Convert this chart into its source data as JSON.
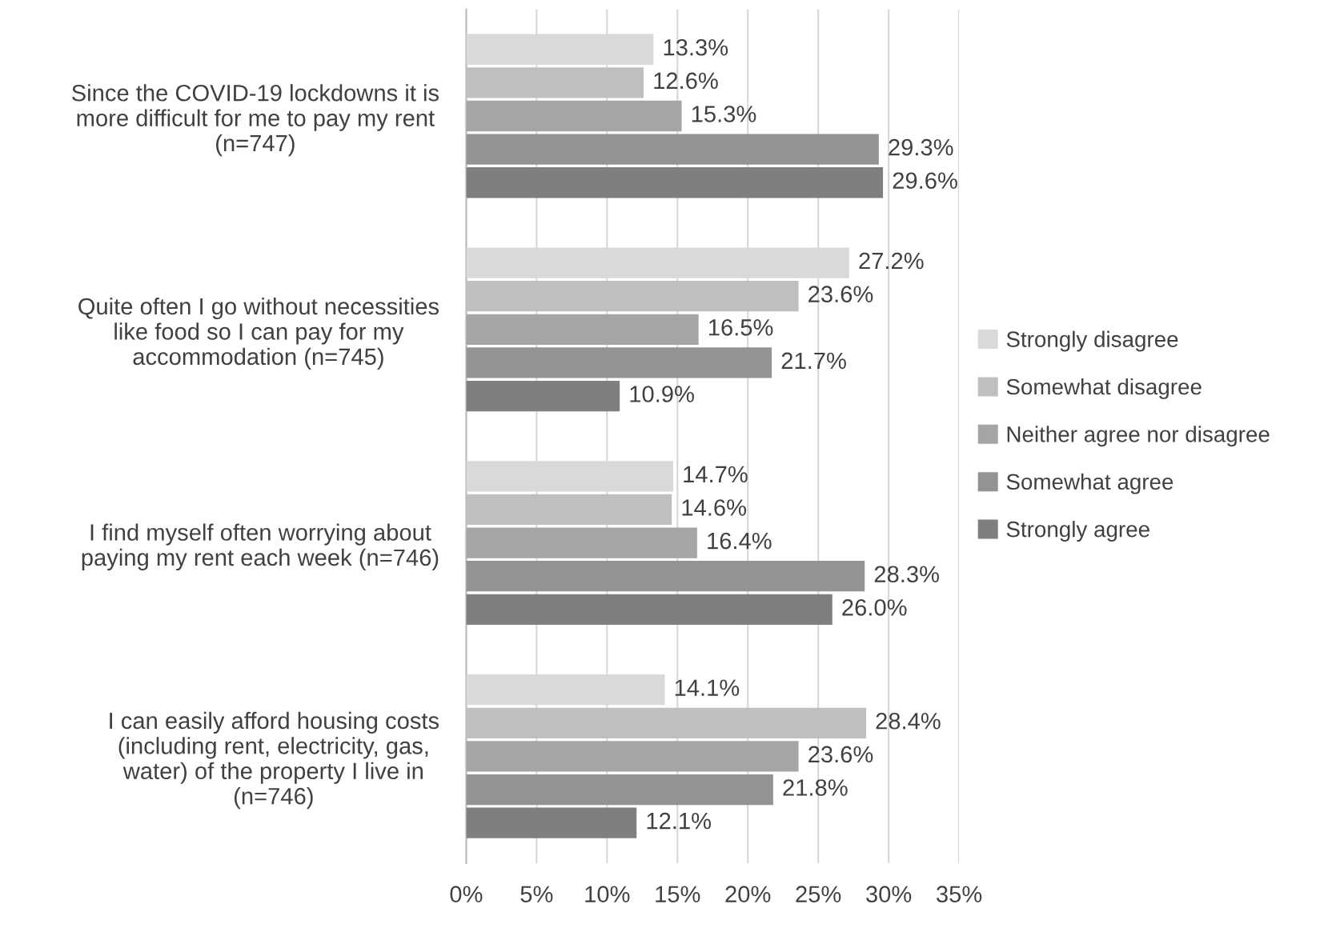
{
  "chart_data": {
    "type": "bar",
    "orientation": "horizontal",
    "categories": [
      "Since the COVID-19 lockdowns it is more difficult for me to pay my rent (n=747)",
      "Quite often I go without necessities like food so I can pay for my accommodation (n=745)",
      "I find myself often worrying about paying my rent each week (n=746)",
      "I can easily afford housing costs (including rent, electricity, gas, water) of the property I live in (n=746)"
    ],
    "series": [
      {
        "name": "Strongly disagree",
        "color": "#d9d9d9",
        "values": [
          13.3,
          27.2,
          14.7,
          14.1
        ],
        "value_labels": [
          "13.3%",
          "27.2%",
          "14.7%",
          "14.1%"
        ]
      },
      {
        "name": "Somewhat disagree",
        "color": "#bfbfbf",
        "values": [
          12.6,
          23.6,
          14.6,
          28.4
        ],
        "value_labels": [
          "12.6%",
          "23.6%",
          "14.6%",
          "28.4%"
        ]
      },
      {
        "name": "Neither agree nor disagree",
        "color": "#a5a5a5",
        "values": [
          15.3,
          16.5,
          16.4,
          23.6
        ],
        "value_labels": [
          "15.3%",
          "16.5%",
          "16.4%",
          "23.6%"
        ]
      },
      {
        "name": "Somewhat agree",
        "color": "#939393",
        "values": [
          29.3,
          21.7,
          28.3,
          21.8
        ],
        "value_labels": [
          "29.3%",
          "21.7%",
          "28.3%",
          "21.8%"
        ]
      },
      {
        "name": "Strongly agree",
        "color": "#7f7f7f",
        "values": [
          29.6,
          10.9,
          26.0,
          12.1
        ],
        "value_labels": [
          "29.6%",
          "10.9%",
          "26.0%",
          "12.1%"
        ]
      }
    ],
    "xlim": [
      0,
      35
    ],
    "xticks": [
      {
        "value": 0,
        "label": "0%"
      },
      {
        "value": 5,
        "label": "5%"
      },
      {
        "value": 10,
        "label": "10%"
      },
      {
        "value": 15,
        "label": "15%"
      },
      {
        "value": 20,
        "label": "20%"
      },
      {
        "value": 25,
        "label": "25%"
      },
      {
        "value": 30,
        "label": "30%"
      },
      {
        "value": 35,
        "label": "35%"
      }
    ],
    "grid": "x",
    "legend": "right"
  }
}
